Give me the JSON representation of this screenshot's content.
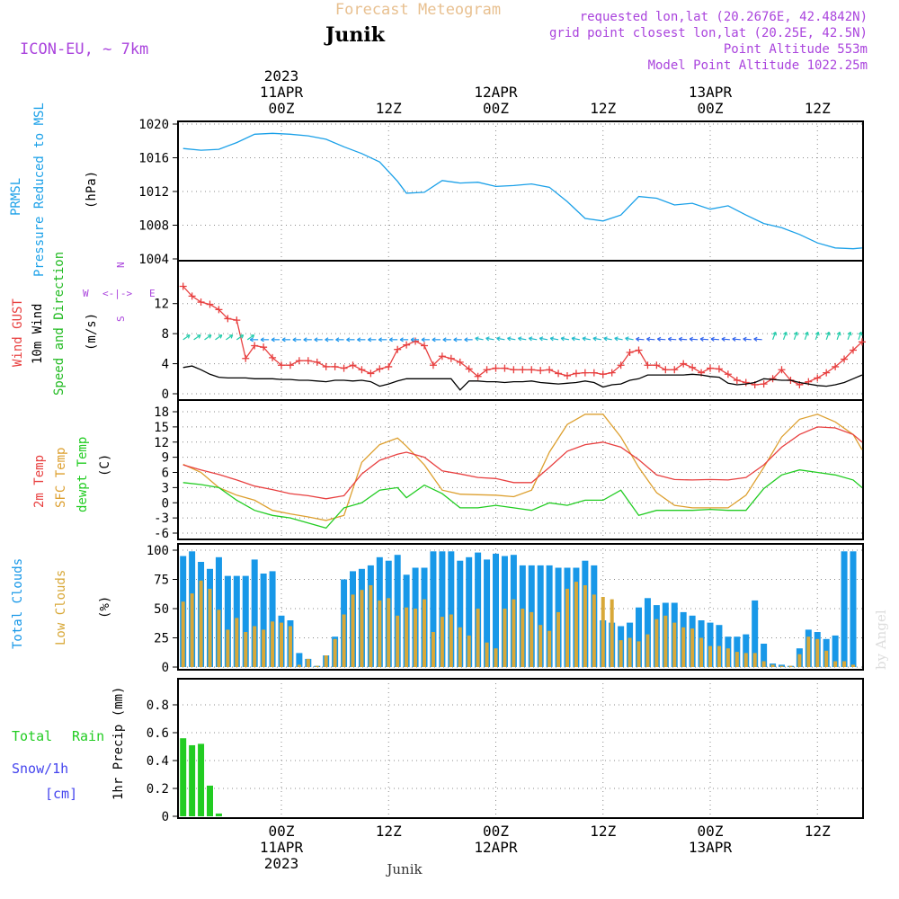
{
  "header": {
    "title": "Forecast Meteogram",
    "location": "Junik",
    "model": "ICON-EU, ~ 7km",
    "requested": "requested lon,lat (20.2676E, 42.4842N)",
    "gridpoint": "grid point closest lon,lat (20.25E, 42.5N)",
    "point_alt": "Point Altitude 553m",
    "model_alt": "Model Point Altitude 1022.25m",
    "footer_location": "Junik",
    "watermark": "by Angel"
  },
  "colors": {
    "pressure": "#1aa0e8",
    "gust": "#e84040",
    "wind": "#000000",
    "wind_label": "#22bb22",
    "temp2m": "#e84040",
    "sfc": "#dda030",
    "dewpt": "#22cc22",
    "total_clouds": "#1898e8",
    "low_clouds": "#d8a838",
    "rain": "#22cc22",
    "snow": "#4444ee",
    "purple": "#aa44dd",
    "title": "#e8c090"
  },
  "time_axis": {
    "top": [
      {
        "h": 0,
        "lines": [
          "2023",
          "11APR",
          "00Z"
        ]
      },
      {
        "h": 12,
        "lines": [
          "12Z"
        ]
      },
      {
        "h": 24,
        "lines": [
          "12APR",
          "00Z"
        ]
      },
      {
        "h": 36,
        "lines": [
          "12Z"
        ]
      },
      {
        "h": 48,
        "lines": [
          "13APR",
          "00Z"
        ]
      },
      {
        "h": 60,
        "lines": [
          "12Z"
        ]
      }
    ],
    "bottom": [
      {
        "h": 0,
        "lines": [
          "00Z",
          "11APR",
          "2023"
        ]
      },
      {
        "h": 12,
        "lines": [
          "12Z"
        ]
      },
      {
        "h": 24,
        "lines": [
          "00Z",
          "12APR"
        ]
      },
      {
        "h": 36,
        "lines": [
          "12Z"
        ]
      },
      {
        "h": 48,
        "lines": [
          "00Z",
          "13APR"
        ]
      },
      {
        "h": 60,
        "lines": [
          "12Z"
        ]
      }
    ]
  },
  "labels": {
    "pressure": [
      "PRMSL",
      "Pressure Reduced to MSL",
      "(hPa)"
    ],
    "wind": [
      "Wind GUST",
      "10m Wind",
      "Speed and Direction",
      "(m/s)"
    ],
    "compass": {
      "w": "W",
      "e": "E",
      "n": "N",
      "s": "S",
      "glyph_h": "<-|->",
      "glyph_v": "^|v"
    },
    "temp": [
      "2m Temp",
      "SFC Temp",
      "dewpt Temp",
      "(C)"
    ],
    "clouds": [
      "Total Clouds",
      "Low Clouds",
      "(%)"
    ],
    "precip": [
      "Total",
      "Rain",
      "Snow/1h",
      "[cm]",
      "1hr Precip (mm)"
    ]
  },
  "chart_data": [
    {
      "type": "line",
      "panel": "pressure",
      "ylabel": "Pressure Reduced to MSL (hPa)",
      "ylim": [
        1004,
        1020
      ],
      "yticks": [
        1004,
        1008,
        1012,
        1016,
        1020
      ],
      "grid": true,
      "x": [
        -11,
        -9,
        -7,
        -5,
        -3,
        -1,
        1,
        3,
        5,
        7,
        9,
        11,
        13,
        14,
        16,
        18,
        20,
        22,
        24,
        26,
        28,
        30,
        32,
        34,
        36,
        38,
        40,
        42,
        44,
        46,
        48,
        50,
        52,
        54,
        56,
        58,
        60,
        62,
        64,
        65
      ],
      "series": [
        {
          "name": "PRMSL",
          "values": [
            1017.1,
            1016.9,
            1017.0,
            1017.8,
            1018.8,
            1018.9,
            1018.8,
            1018.6,
            1018.2,
            1017.3,
            1016.5,
            1015.5,
            1013.2,
            1011.8,
            1011.9,
            1013.3,
            1013.0,
            1013.1,
            1012.6,
            1012.7,
            1012.9,
            1012.5,
            1010.8,
            1008.8,
            1008.5,
            1009.2,
            1011.4,
            1011.2,
            1010.4,
            1010.6,
            1009.9,
            1010.3,
            1009.2,
            1008.2,
            1007.7,
            1006.9,
            1005.9,
            1005.3,
            1005.2,
            1005.3
          ]
        }
      ]
    },
    {
      "type": "line",
      "panel": "wind",
      "ylabel": "Speed and Direction (m/s)",
      "ylim": [
        0,
        14
      ],
      "yticks": [
        0,
        4,
        8,
        12
      ],
      "grid": true,
      "x": [
        -11,
        -10,
        -9,
        -8,
        -7,
        -6,
        -5,
        -4,
        -3,
        -2,
        -1,
        0,
        1,
        2,
        3,
        4,
        5,
        6,
        7,
        8,
        9,
        10,
        11,
        12,
        13,
        14,
        15,
        16,
        17,
        18,
        19,
        20,
        21,
        22,
        23,
        24,
        25,
        26,
        27,
        28,
        29,
        30,
        31,
        32,
        33,
        34,
        35,
        36,
        37,
        38,
        39,
        40,
        41,
        42,
        43,
        44,
        45,
        46,
        47,
        48,
        49,
        50,
        51,
        52,
        53,
        54,
        55,
        56,
        57,
        58,
        59,
        60,
        61,
        62,
        63,
        64,
        65
      ],
      "series": [
        {
          "name": "Wind GUST",
          "values": [
            14.3,
            13.0,
            12.2,
            11.9,
            11.2,
            10.0,
            9.8,
            4.7,
            6.4,
            6.2,
            4.8,
            3.8,
            3.8,
            4.4,
            4.4,
            4.2,
            3.6,
            3.6,
            3.4,
            3.8,
            3.2,
            2.7,
            3.3,
            3.6,
            5.9,
            6.5,
            7.0,
            6.4,
            3.8,
            5.0,
            4.7,
            4.2,
            3.3,
            2.3,
            3.2,
            3.4,
            3.4,
            3.2,
            3.2,
            3.2,
            3.1,
            3.2,
            2.7,
            2.4,
            2.7,
            2.8,
            2.8,
            2.6,
            2.8,
            3.8,
            5.5,
            5.8,
            3.8,
            3.8,
            3.2,
            3.2,
            4.0,
            3.5,
            2.8,
            3.4,
            3.3,
            2.6,
            1.8,
            1.5,
            1.2,
            1.3,
            2.0,
            3.2,
            1.8,
            1.2,
            1.6,
            2.1,
            2.8,
            3.6,
            4.6,
            5.8,
            6.9
          ]
        },
        {
          "name": "10m Wind",
          "values": [
            3.5,
            3.7,
            3.2,
            2.6,
            2.2,
            2.1,
            2.1,
            2.1,
            2.0,
            2.0,
            2.0,
            1.9,
            1.9,
            1.8,
            1.8,
            1.7,
            1.6,
            1.8,
            1.8,
            1.7,
            1.8,
            1.6,
            1.0,
            1.3,
            1.7,
            2.0,
            2.0,
            2.0,
            2.0,
            2.0,
            2.0,
            0.5,
            1.7,
            1.7,
            1.6,
            1.6,
            1.5,
            1.6,
            1.6,
            1.7,
            1.5,
            1.4,
            1.3,
            1.4,
            1.5,
            1.7,
            1.5,
            0.9,
            1.2,
            1.3,
            1.8,
            2.0,
            2.5,
            2.5,
            2.5,
            2.5,
            2.5,
            2.6,
            2.5,
            2.3,
            2.2,
            1.4,
            1.2,
            1.3,
            1.5,
            2.0,
            1.9,
            1.8,
            1.8,
            1.5,
            1.3,
            1.1,
            1.0,
            1.2,
            1.5,
            2.0,
            2.5
          ]
        }
      ]
    },
    {
      "type": "line",
      "panel": "temperature",
      "ylabel": "(C)",
      "ylim": [
        -6,
        18
      ],
      "yticks": [
        -6,
        -3,
        0,
        3,
        6,
        9,
        12,
        15,
        18
      ],
      "grid": true,
      "x": [
        -11,
        -9,
        -7,
        -5,
        -3,
        -1,
        1,
        3,
        5,
        7,
        9,
        11,
        13,
        14,
        16,
        18,
        20,
        22,
        24,
        26,
        28,
        30,
        32,
        34,
        36,
        38,
        40,
        42,
        44,
        46,
        48,
        50,
        52,
        54,
        56,
        58,
        60,
        62,
        64,
        65
      ],
      "series": [
        {
          "name": "2m Temp",
          "values": [
            7.5,
            6.5,
            5.6,
            4.5,
            3.3,
            2.6,
            1.8,
            1.4,
            0.8,
            1.4,
            5.7,
            8.4,
            9.6,
            10.0,
            9.0,
            6.3,
            5.7,
            5.0,
            4.8,
            4.0,
            4.0,
            7.0,
            10.2,
            11.5,
            12.0,
            11.0,
            8.5,
            5.5,
            4.6,
            4.5,
            4.6,
            4.5,
            5.0,
            7.5,
            11.0,
            13.5,
            15.0,
            14.8,
            13.5,
            12.0
          ]
        },
        {
          "name": "SFC Temp",
          "values": [
            7.6,
            6.0,
            3.0,
            1.5,
            0.5,
            -1.5,
            -2.2,
            -2.8,
            -3.5,
            -2.5,
            8.0,
            11.5,
            12.8,
            11.2,
            7.5,
            2.5,
            1.7,
            1.6,
            1.5,
            1.2,
            2.5,
            10.0,
            15.5,
            17.5,
            17.5,
            13.0,
            7.0,
            2.0,
            -0.5,
            -1.0,
            -1.0,
            -1.0,
            1.5,
            7.0,
            13.0,
            16.5,
            17.5,
            16.0,
            13.5,
            10.5
          ]
        },
        {
          "name": "dewpt Temp",
          "values": [
            4.0,
            3.6,
            3.0,
            0.5,
            -1.5,
            -2.5,
            -3.0,
            -4.0,
            -5.0,
            -1.0,
            0.0,
            2.5,
            3.0,
            1.0,
            3.5,
            1.8,
            -1.0,
            -1.0,
            -0.5,
            -1.0,
            -1.5,
            0.0,
            -0.5,
            0.5,
            0.5,
            2.5,
            -2.5,
            -1.5,
            -1.5,
            -1.5,
            -1.3,
            -1.5,
            -1.5,
            2.8,
            5.5,
            6.5,
            6.0,
            5.5,
            4.5,
            3.0
          ]
        }
      ]
    },
    {
      "type": "bar",
      "panel": "clouds",
      "ylabel": "(%)",
      "ylim": [
        0,
        100
      ],
      "yticks": [
        0,
        25,
        50,
        75,
        100
      ],
      "grid": true,
      "x": [
        -12,
        -11,
        -10,
        -9,
        -8,
        -7,
        -6,
        -5,
        -4,
        -3,
        -2,
        -1,
        0,
        1,
        2,
        3,
        4,
        5,
        6,
        7,
        8,
        9,
        10,
        11,
        12,
        13,
        14,
        15,
        16,
        17,
        18,
        19,
        20,
        21,
        22,
        23,
        24,
        25,
        26,
        27,
        28,
        29,
        30,
        31,
        32,
        33,
        34,
        35,
        36,
        37,
        38,
        39,
        40,
        41,
        42,
        43,
        44,
        45,
        46,
        47,
        48,
        49,
        50,
        51,
        52,
        53,
        54,
        55,
        56,
        57,
        58,
        59,
        60,
        61,
        62,
        63,
        64,
        65
      ],
      "series": [
        {
          "name": "Total Clouds",
          "values": [
            95,
            95,
            99,
            90,
            84,
            94,
            78,
            78,
            78,
            92,
            80,
            82,
            44,
            40,
            12,
            7,
            1,
            10,
            26,
            75,
            82,
            84,
            87,
            94,
            91,
            96,
            79,
            85,
            85,
            99,
            99,
            99,
            91,
            94,
            98,
            92,
            97,
            95,
            96,
            87,
            87,
            87,
            87,
            85,
            85,
            85,
            91,
            87,
            40,
            38,
            35,
            38,
            51,
            59,
            53,
            55,
            55,
            47,
            44,
            40,
            38,
            36,
            26,
            26,
            28,
            57,
            20,
            3,
            2,
            1,
            16,
            32,
            30,
            24,
            27,
            99,
            99,
            99
          ]
        },
        {
          "name": "Low Clouds",
          "values": [
            54,
            56,
            63,
            74,
            67,
            49,
            32,
            42,
            30,
            35,
            32,
            39,
            38,
            35,
            2,
            7,
            1,
            10,
            24,
            45,
            62,
            66,
            70,
            57,
            59,
            44,
            51,
            50,
            58,
            30,
            43,
            45,
            34,
            27,
            50,
            21,
            16,
            50,
            58,
            50,
            47,
            36,
            31,
            47,
            67,
            73,
            70,
            62,
            60,
            58,
            23,
            25,
            22,
            28,
            41,
            44,
            38,
            34,
            33,
            25,
            18,
            18,
            16,
            13,
            12,
            12,
            5,
            2,
            1,
            1,
            11,
            26,
            24,
            14,
            5,
            5,
            2,
            1
          ]
        }
      ]
    },
    {
      "type": "bar",
      "panel": "precipitation",
      "ylabel": "1hr Precip (mm)",
      "ylim": [
        0,
        0.96
      ],
      "yticks": [
        0,
        0.2,
        0.4,
        0.6,
        0.8
      ],
      "grid": true,
      "x": [
        -11,
        -10,
        -9,
        -8,
        -7
      ],
      "series": [
        {
          "name": "Total Rain",
          "values": [
            0.56,
            0.51,
            0.52,
            0.22,
            0.02
          ]
        }
      ]
    }
  ]
}
